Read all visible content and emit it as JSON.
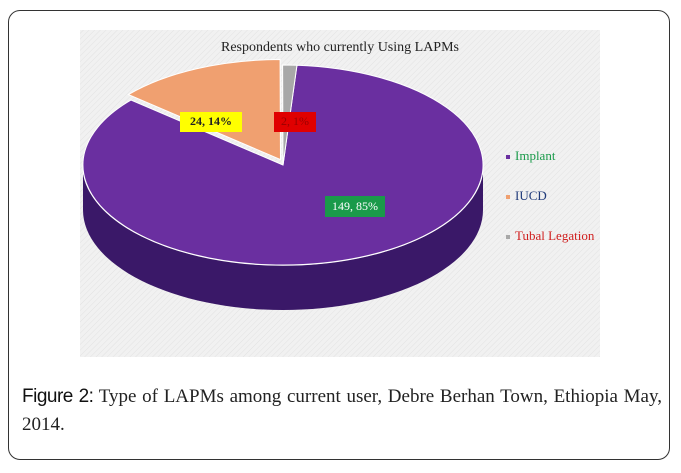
{
  "chart_data": {
    "type": "pie",
    "title": "Respondents who currently Using LAPMs",
    "categories": [
      "Implant",
      "IUCD",
      "Tubal Legation"
    ],
    "values": [
      149,
      24,
      2
    ],
    "value_labels": [
      "149, 85%",
      "24, 14%",
      "2, 1%"
    ],
    "colors": [
      "#6a2fa0",
      "#f0a070",
      "#a8a8a8"
    ],
    "legend": "right"
  },
  "caption": {
    "label": "Figure 2:",
    "text": "Type of LAPMs among current user, Debre Berhan Town, Ethiopia May, 2014."
  }
}
